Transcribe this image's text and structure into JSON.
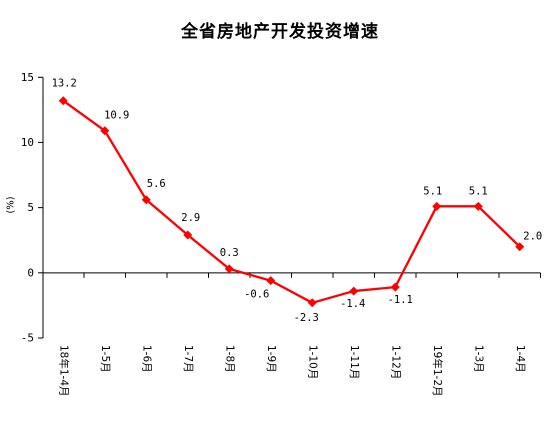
{
  "chart_data": {
    "type": "line",
    "title": "全省房地产开发投资增速",
    "xlabel": "",
    "ylabel": "(%)",
    "categories": [
      "18年1-4月",
      "1-5月",
      "1-6月",
      "1-7月",
      "1-8月",
      "1-9月",
      "1-10月",
      "1-11月",
      "1-12月",
      "19年1-2月",
      "1-3月",
      "1-4月"
    ],
    "series": [
      {
        "values": [
          13.2,
          10.9,
          5.6,
          2.9,
          0.3,
          -0.6,
          -2.3,
          -1.4,
          -1.1,
          5.1,
          5.1,
          2.0
        ],
        "color": "#ff0000",
        "marker": "diamond"
      }
    ],
    "ylim": [
      -5,
      15
    ],
    "yticks": [
      -5,
      0,
      5,
      10,
      15
    ],
    "data_labels": true,
    "grid": false,
    "legend": false
  }
}
